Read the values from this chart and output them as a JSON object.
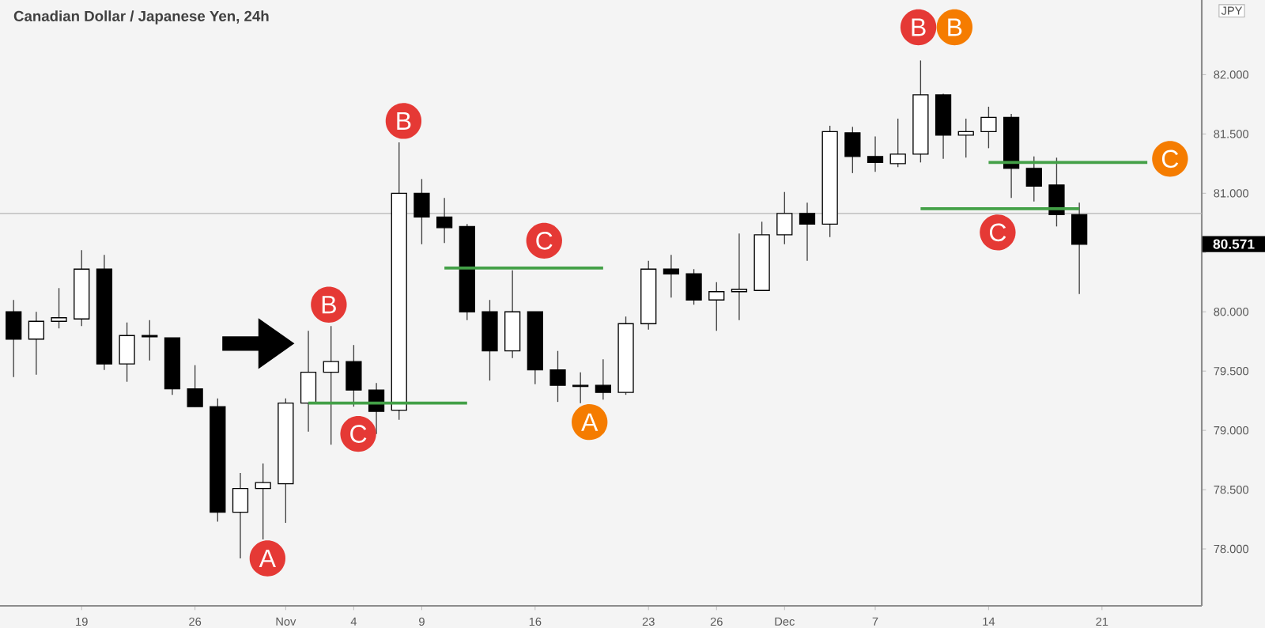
{
  "chart_data": {
    "type": "candlestick",
    "title": "Canadian Dollar / Japanese Yen, 24h",
    "ylabel": "JPY",
    "categories": [
      null,
      null,
      null,
      "19",
      null,
      null,
      null,
      null,
      "26",
      null,
      null,
      null,
      "Nov",
      null,
      null,
      "4",
      null,
      null,
      "9",
      null,
      null,
      null,
      null,
      "16",
      null,
      null,
      null,
      null,
      "23",
      null,
      null,
      "26",
      null,
      null,
      "Dec",
      null,
      null,
      null,
      "7",
      null,
      null,
      null,
      null,
      "14",
      null,
      null,
      null,
      null,
      "21",
      null,
      null,
      null,
      null
    ],
    "ohlc": [
      [
        80.0,
        80.1,
        79.45,
        79.77
      ],
      [
        79.77,
        80.0,
        79.47,
        79.92
      ],
      [
        79.92,
        80.2,
        79.86,
        79.95
      ],
      [
        79.94,
        80.52,
        79.88,
        80.36
      ],
      [
        80.36,
        80.48,
        79.51,
        79.56
      ],
      [
        79.56,
        79.91,
        79.41,
        79.8
      ],
      [
        79.8,
        79.93,
        79.59,
        79.79
      ],
      [
        79.78,
        79.78,
        79.3,
        79.35
      ],
      [
        79.35,
        79.55,
        79.2,
        79.2
      ],
      [
        79.2,
        79.27,
        78.23,
        78.31
      ],
      [
        78.31,
        78.64,
        77.92,
        78.51
      ],
      [
        78.51,
        78.72,
        78.08,
        78.56
      ],
      [
        78.55,
        79.27,
        78.22,
        79.23
      ],
      [
        79.23,
        79.84,
        78.99,
        79.49
      ],
      [
        79.49,
        79.88,
        78.88,
        79.58
      ],
      [
        79.58,
        79.72,
        79.2,
        79.34
      ],
      [
        79.34,
        79.4,
        78.97,
        79.16
      ],
      [
        79.17,
        81.43,
        79.09,
        81.0
      ],
      [
        81.0,
        81.12,
        80.57,
        80.8
      ],
      [
        80.8,
        80.96,
        80.58,
        80.71
      ],
      [
        80.72,
        80.74,
        79.93,
        80.0
      ],
      [
        80.0,
        80.1,
        79.42,
        79.67
      ],
      [
        79.67,
        80.35,
        79.61,
        80.0
      ],
      [
        80.0,
        80.0,
        79.39,
        79.51
      ],
      [
        79.51,
        79.67,
        79.24,
        79.38
      ],
      [
        79.38,
        79.49,
        79.23,
        79.37
      ],
      [
        79.38,
        79.6,
        79.26,
        79.32
      ],
      [
        79.32,
        79.96,
        79.3,
        79.9
      ],
      [
        79.9,
        80.43,
        79.85,
        80.36
      ],
      [
        80.36,
        80.48,
        80.12,
        80.32
      ],
      [
        80.32,
        80.36,
        80.06,
        80.1
      ],
      [
        80.1,
        80.25,
        79.84,
        80.17
      ],
      [
        80.17,
        80.66,
        79.93,
        80.19
      ],
      [
        80.18,
        80.76,
        80.18,
        80.65
      ],
      [
        80.65,
        81.01,
        80.57,
        80.83
      ],
      [
        80.83,
        80.92,
        80.43,
        80.74
      ],
      [
        80.74,
        81.57,
        80.63,
        81.52
      ],
      [
        81.51,
        81.56,
        81.17,
        81.31
      ],
      [
        81.31,
        81.48,
        81.18,
        81.26
      ],
      [
        81.25,
        81.63,
        81.22,
        81.33
      ],
      [
        81.33,
        82.12,
        81.26,
        81.83
      ],
      [
        81.83,
        81.84,
        81.29,
        81.49
      ],
      [
        81.49,
        81.63,
        81.3,
        81.52
      ],
      [
        81.52,
        81.73,
        81.38,
        81.64
      ],
      [
        81.64,
        81.67,
        80.96,
        81.21
      ],
      [
        81.21,
        81.31,
        80.93,
        81.06
      ],
      [
        81.07,
        81.3,
        80.72,
        80.82
      ],
      [
        80.82,
        80.92,
        80.15,
        80.57
      ],
      null,
      null,
      null,
      null,
      null
    ],
    "series": [
      {
        "type": "line",
        "color": "#43a047",
        "values": [
          null,
          null,
          null,
          null,
          null,
          null,
          null,
          null,
          null,
          null,
          null,
          null,
          null,
          79.23,
          79.23,
          79.23,
          79.23,
          79.23,
          79.23,
          79.23,
          79.23,
          null,
          null,
          null,
          null,
          null,
          null,
          null,
          null,
          null,
          null,
          null,
          null,
          null,
          null,
          null,
          null,
          null,
          null,
          null,
          null,
          null,
          null,
          null,
          null,
          null,
          null,
          null,
          null,
          null,
          null,
          null,
          null
        ]
      },
      {
        "type": "line",
        "color": "#43a047",
        "values": [
          null,
          null,
          null,
          null,
          null,
          null,
          null,
          null,
          null,
          null,
          null,
          null,
          null,
          null,
          null,
          null,
          null,
          null,
          null,
          80.37,
          80.37,
          80.37,
          80.37,
          80.37,
          80.37,
          80.37,
          80.37,
          null,
          null,
          null,
          null,
          null,
          null,
          null,
          null,
          null,
          null,
          null,
          null,
          null,
          null,
          null,
          null,
          null,
          null,
          null,
          null,
          null,
          null,
          null,
          null,
          null,
          null
        ]
      },
      {
        "type": "line",
        "color": "#43a047",
        "values": [
          null,
          null,
          null,
          null,
          null,
          null,
          null,
          null,
          null,
          null,
          null,
          null,
          null,
          null,
          null,
          null,
          null,
          null,
          null,
          null,
          null,
          null,
          null,
          null,
          null,
          null,
          null,
          null,
          null,
          null,
          null,
          null,
          null,
          null,
          null,
          null,
          null,
          null,
          null,
          null,
          null,
          null,
          null,
          81.26,
          81.26,
          81.26,
          81.26,
          81.26,
          81.26,
          81.26,
          81.26,
          null,
          null
        ]
      },
      {
        "type": "line",
        "color": "#43a047",
        "values": [
          null,
          null,
          null,
          null,
          null,
          null,
          null,
          null,
          null,
          null,
          null,
          null,
          null,
          null,
          null,
          null,
          null,
          null,
          null,
          null,
          null,
          null,
          null,
          null,
          null,
          null,
          null,
          null,
          null,
          null,
          null,
          null,
          null,
          null,
          null,
          null,
          null,
          null,
          null,
          null,
          80.87,
          80.87,
          80.87,
          80.87,
          80.87,
          80.87,
          80.87,
          80.87,
          null,
          null,
          null,
          null,
          null
        ]
      }
    ],
    "ylim": [
      77.52,
      82.63
    ],
    "yticks": [
      {
        "value": 78,
        "label": "78.000"
      },
      {
        "value": 78.5,
        "label": "78.500"
      },
      {
        "value": 79,
        "label": "79.000"
      },
      {
        "value": 79.5,
        "label": "79.500"
      },
      {
        "value": 80,
        "label": "80.000"
      },
      {
        "value": 80.5,
        "label": null
      },
      {
        "value": 81,
        "label": "81.000"
      },
      {
        "value": 81.5,
        "label": "81.500"
      },
      {
        "value": 82,
        "label": "82.000"
      }
    ],
    "ref_lines": [
      {
        "axis": "y",
        "value": 80.83,
        "color": "#b4b4b4"
      }
    ],
    "annotations": [
      "A",
      "B",
      "C",
      "B",
      "C",
      "A",
      "B",
      "B",
      "C",
      "C",
      "80.571"
    ]
  }
}
